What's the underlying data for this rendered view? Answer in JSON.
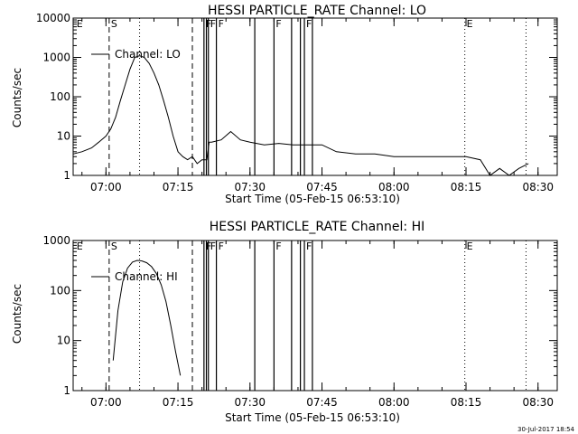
{
  "chart_data": [
    {
      "type": "line",
      "title": "HESSI PARTICLE_RATE Channel: LO",
      "xlabel": "Start Time (05-Feb-15 06:53:10)",
      "ylabel": "Counts/sec",
      "yscale": "log",
      "ylim": [
        1,
        10000
      ],
      "xlim": [
        "06:53:10",
        "08:34:00"
      ],
      "x_ticks": [
        "07:00",
        "07:15",
        "07:30",
        "07:45",
        "08:00",
        "08:15",
        "08:30"
      ],
      "y_ticks": [
        "1",
        "10",
        "100",
        "1000",
        "10000"
      ],
      "legend": "top-left",
      "series": [
        {
          "name": "Channel: LO",
          "x": [
            "06:53:10",
            "06:55:00",
            "06:57:00",
            "06:58:30",
            "07:00:00",
            "07:01:00",
            "07:02:00",
            "07:03:00",
            "07:04:00",
            "07:05:00",
            "07:06:00",
            "07:07:00",
            "07:08:00",
            "07:09:00",
            "07:10:00",
            "07:11:00",
            "07:12:00",
            "07:13:00",
            "07:14:00",
            "07:15:00",
            "07:16:00",
            "07:17:00",
            "07:18:00",
            "07:19:00",
            "07:20:00",
            "07:21:00",
            "07:21:30",
            "07:22:00",
            "07:24:00",
            "07:26:00",
            "07:28:00",
            "07:30:00",
            "07:33:00",
            "07:36:00",
            "07:39:00",
            "07:42:00",
            "07:45:00",
            "07:48:00",
            "07:52:00",
            "07:56:00",
            "08:00:00",
            "08:04:00",
            "08:08:00",
            "08:12:00",
            "08:15:00",
            "08:18:00",
            "08:20:00",
            "08:22:00",
            "08:24:00",
            "08:26:00",
            "08:28:00"
          ],
          "y": [
            3.5,
            4,
            5,
            7,
            10,
            15,
            30,
            80,
            200,
            500,
            1000,
            1100,
            1000,
            700,
            400,
            200,
            80,
            30,
            10,
            4,
            3,
            2.5,
            3,
            2,
            2.5,
            2.5,
            7,
            7,
            8,
            13,
            8,
            7,
            6,
            6.5,
            6,
            6,
            6,
            4,
            3.5,
            3.5,
            3,
            3,
            3,
            3,
            3,
            2.5,
            1,
            1.5,
            1,
            1.5,
            2
          ]
        }
      ]
    },
    {
      "type": "line",
      "title": "HESSI PARTICLE_RATE Channel: HI",
      "xlabel": "Start Time (05-Feb-15 06:53:10)",
      "ylabel": "Counts/sec",
      "yscale": "log",
      "ylim": [
        1,
        1000
      ],
      "xlim": [
        "06:53:10",
        "08:34:00"
      ],
      "x_ticks": [
        "07:00",
        "07:15",
        "07:30",
        "07:45",
        "08:00",
        "08:15",
        "08:30"
      ],
      "y_ticks": [
        "1",
        "10",
        "100",
        "1000"
      ],
      "legend": "top-left",
      "series": [
        {
          "name": "Channel: HI",
          "x": [
            "07:01:30",
            "07:02:30",
            "07:03:30",
            "07:04:30",
            "07:05:30",
            "07:06:30",
            "07:07:30",
            "07:08:30",
            "07:09:30",
            "07:10:30",
            "07:11:30",
            "07:12:30",
            "07:13:30",
            "07:14:30",
            "07:15:30"
          ],
          "y": [
            4,
            40,
            150,
            280,
            370,
            400,
            390,
            360,
            300,
            220,
            130,
            60,
            20,
            6,
            2
          ]
        }
      ]
    }
  ],
  "event_lines": {
    "dashed": [
      "07:00:40",
      "07:18:00"
    ],
    "dotted": [
      "07:07:00",
      "08:14:45",
      "08:27:30"
    ],
    "solid": [
      "07:20:25",
      "07:20:55",
      "07:21:20",
      "07:23:00",
      "07:31:00",
      "07:35:00",
      "07:38:40",
      "07:40:30",
      "07:41:20",
      "07:43:00"
    ],
    "flags": [
      {
        "label": "E",
        "time": "06:53:30"
      },
      {
        "label": "S",
        "time": "07:00:40"
      },
      {
        "label": "F",
        "time": "07:20:25"
      },
      {
        "label": "F",
        "time": "07:21:20"
      },
      {
        "label": "F",
        "time": "07:23:00"
      },
      {
        "label": "F",
        "time": "07:35:00"
      },
      {
        "label": "F",
        "time": "07:41:20"
      },
      {
        "label": "E",
        "time": "08:14:45"
      }
    ]
  },
  "footer": {
    "timestamp": "30-Jul-2017 18:54"
  }
}
